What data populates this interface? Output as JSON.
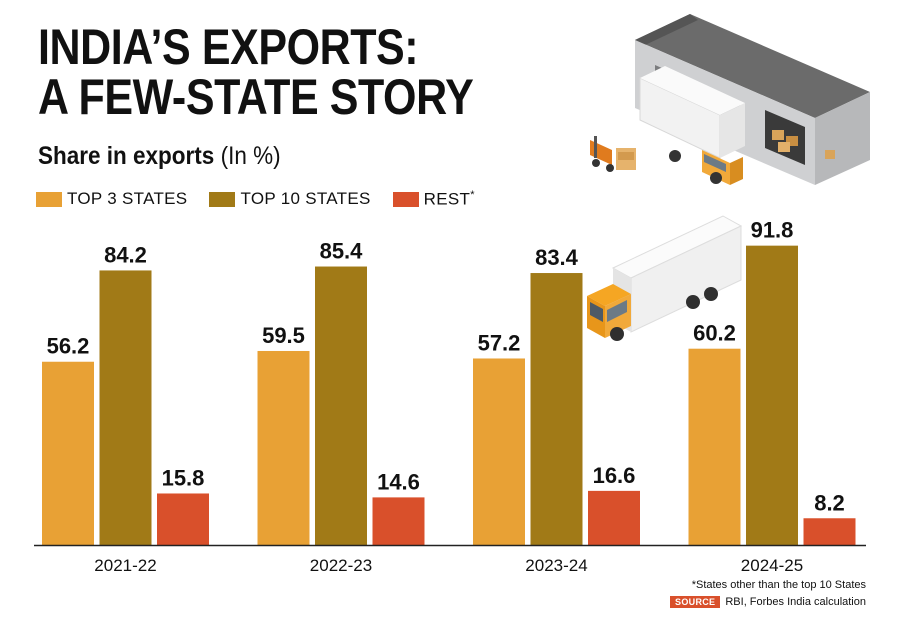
{
  "header": {
    "title_line1": "INDIA’S EXPORTS:",
    "title_line2": "A FEW-STATE STORY",
    "subtitle_bold": "Share in exports",
    "subtitle_unit": "(In %)"
  },
  "legend": {
    "items": [
      {
        "label": "TOP 3 STATES",
        "color": "#e8a135"
      },
      {
        "label": "TOP 10 STATES",
        "color": "#a17a17"
      },
      {
        "label": "REST",
        "marker": "*",
        "color": "#d9502b"
      }
    ]
  },
  "chart_data": {
    "type": "bar",
    "title": "INDIA’S EXPORTS: A FEW-STATE STORY",
    "subtitle": "Share in exports (In %)",
    "categories": [
      "2021-22",
      "2022-23",
      "2023-24",
      "2024-25"
    ],
    "series": [
      {
        "name": "TOP 3 STATES",
        "color": "#e8a135",
        "values": [
          56.2,
          59.5,
          57.2,
          60.2
        ]
      },
      {
        "name": "TOP 10 STATES",
        "color": "#a17a17",
        "values": [
          84.2,
          85.4,
          83.4,
          91.8
        ]
      },
      {
        "name": "REST*",
        "color": "#d9502b",
        "values": [
          15.8,
          14.6,
          16.6,
          8.2
        ]
      }
    ],
    "ylim": [
      0,
      100
    ],
    "grid": false,
    "legend_position": "top-left"
  },
  "footer": {
    "footnote": "*States other than the top 10 States",
    "source_badge": "SOURCE",
    "source_text": "RBI, Forbes India calculation"
  },
  "illustrations": {
    "warehouse": "warehouse-icon",
    "forklift": "forklift-icon",
    "truck_small": "delivery-truck-icon",
    "truck_large": "delivery-truck-icon"
  }
}
